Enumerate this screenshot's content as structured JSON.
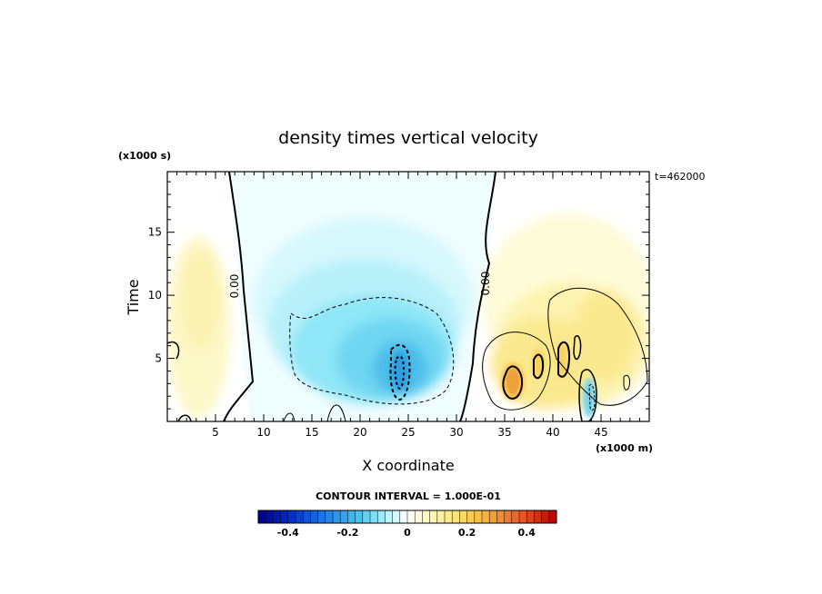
{
  "chart_data": {
    "type": "heatmap",
    "title": "density times vertical velocity",
    "xlabel": "X coordinate",
    "ylabel": "Time",
    "x_units": "(x1000 m)",
    "y_units": "(x1000 s)",
    "timestamp": "t=462000",
    "contour_interval_text": "CONTOUR INTERVAL = 1.000E-01",
    "xlim": [
      0,
      50
    ],
    "ylim": [
      0,
      19.8
    ],
    "x_ticks": [
      5,
      10,
      15,
      20,
      25,
      30,
      35,
      40,
      45
    ],
    "y_ticks": [
      5,
      10,
      15
    ],
    "zero_contour_labels": [
      "0.00",
      "0.00"
    ],
    "colorbar": {
      "range": [
        -0.5,
        0.5
      ],
      "tick_values": [
        -0.4,
        -0.2,
        0,
        0.2,
        0.4
      ],
      "tick_labels": [
        "-0.4",
        "-0.2",
        "0",
        "0.2",
        "0.4"
      ]
    },
    "field_features": [
      {
        "name": "negative-core",
        "x": 24,
        "y": 4.2,
        "value": -0.3
      },
      {
        "name": "negative-region",
        "x": 20,
        "y": 7,
        "value": -0.15
      },
      {
        "name": "left-positive",
        "x": 2,
        "y": 9,
        "value": 0.05
      },
      {
        "name": "right-positive",
        "x": 42,
        "y": 7,
        "value": 0.08
      },
      {
        "name": "right-max",
        "x": 35.5,
        "y": 3,
        "value": 0.25
      },
      {
        "name": "right-negative-strip",
        "x": 44,
        "y": 1.5,
        "value": -0.2
      }
    ]
  }
}
